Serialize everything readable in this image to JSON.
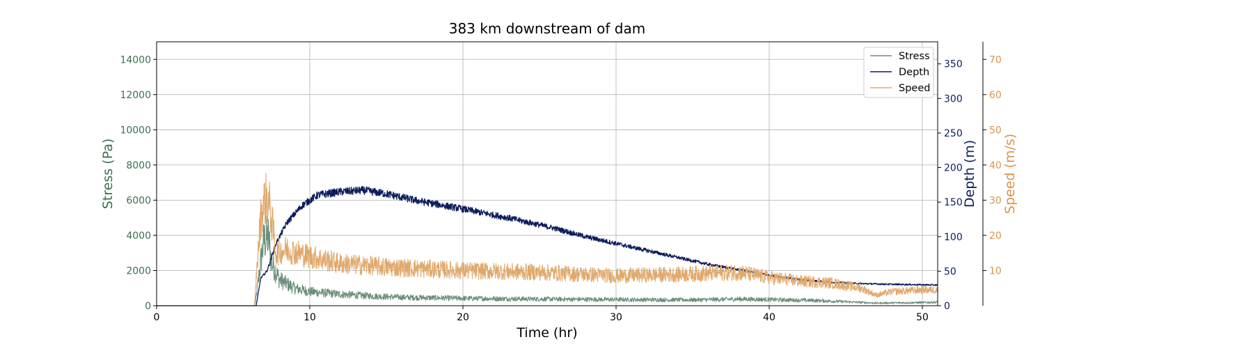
{
  "chart_data": {
    "type": "line",
    "title": "383 km downstream of dam",
    "xlabel": "Time (hr)",
    "x_ticks": [
      0,
      10,
      20,
      30,
      40,
      50
    ],
    "xlim": [
      0,
      51
    ],
    "grid": true,
    "legend_placement": "top-right",
    "axes": {
      "stress": {
        "label": "Stress (Pa)",
        "side": "left",
        "color": "#3b6e52",
        "ylim": [
          0,
          15000
        ],
        "ticks": [
          0,
          2000,
          4000,
          6000,
          8000,
          10000,
          12000,
          14000
        ]
      },
      "depth": {
        "label": "Depth (m)",
        "side": "right",
        "color": "#0c1c5a",
        "ylim": [
          0,
          382
        ],
        "ticks": [
          0,
          50,
          100,
          150,
          200,
          250,
          300,
          350
        ]
      },
      "speed": {
        "label": "Speed (m/s)",
        "side": "right-outer",
        "color": "#d9944e",
        "ylim": [
          0,
          75
        ],
        "ticks": [
          10,
          20,
          30,
          40,
          50,
          60,
          70
        ]
      }
    },
    "series": [
      {
        "name": "Stress",
        "axis": "stress",
        "color": "#6a8f7a",
        "noise": 0.35,
        "x": [
          0,
          6.4,
          6.5,
          6.8,
          7.0,
          7.3,
          7.5,
          8.0,
          9.0,
          10.0,
          12.0,
          14.0,
          16.0,
          20.0,
          25.0,
          30.0,
          35.0,
          38.0,
          40.0,
          43.0,
          47.0,
          50.0,
          51.0
        ],
        "values": [
          0,
          0,
          500,
          2500,
          3700,
          3900,
          2500,
          1500,
          1000,
          800,
          650,
          550,
          480,
          420,
          380,
          350,
          330,
          380,
          350,
          300,
          150,
          180,
          200
        ]
      },
      {
        "name": "Depth",
        "axis": "depth",
        "color": "#0c1c5a",
        "noise": 0.035,
        "x": [
          0,
          6.5,
          6.8,
          7.2,
          7.8,
          8.5,
          9.5,
          10.5,
          12.0,
          13.5,
          15.0,
          17.0,
          20.0,
          23.0,
          26.0,
          28.0,
          30.0,
          33.0,
          36.0,
          38.0,
          40.0,
          42.0,
          44.0,
          46.0,
          48.0,
          51.0
        ],
        "values": [
          0,
          0,
          40,
          50,
          90,
          120,
          145,
          160,
          165,
          167,
          162,
          152,
          140,
          127,
          112,
          100,
          90,
          75,
          60,
          52,
          44,
          38,
          34,
          32,
          31,
          30
        ]
      },
      {
        "name": "Speed",
        "axis": "speed",
        "color": "#e0a96c",
        "noise": 0.25,
        "x": [
          0,
          6.4,
          6.5,
          6.8,
          7.0,
          7.2,
          7.4,
          7.8,
          8.5,
          10.0,
          12.0,
          15.0,
          20.0,
          25.0,
          30.0,
          35.0,
          38.0,
          40.0,
          42.0,
          44.0,
          46.0,
          47.0,
          48.0,
          50.0,
          51.0
        ],
        "values": [
          0,
          0,
          8,
          25,
          29,
          31,
          28,
          15,
          16,
          14,
          12,
          11,
          10,
          9.5,
          8.5,
          9,
          9.5,
          8,
          7,
          6.5,
          5,
          3,
          4,
          4.5,
          4.5
        ]
      }
    ]
  }
}
